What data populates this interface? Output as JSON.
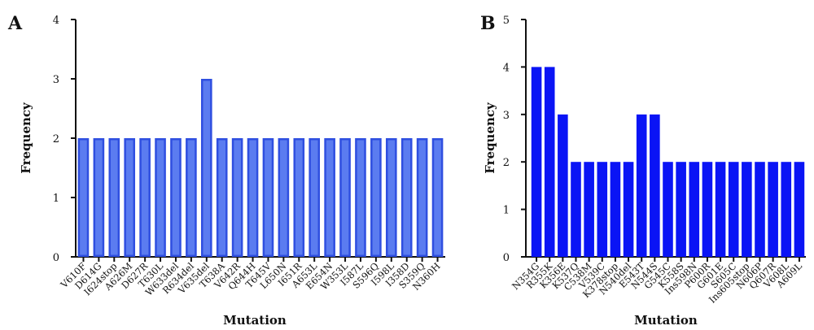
{
  "chart_data": [
    {
      "panel": "A",
      "type": "bar",
      "xlabel": "Mutation",
      "ylabel": "Frequency",
      "ylim": [
        0,
        4
      ],
      "yticks": [
        0,
        1,
        2,
        3,
        4
      ],
      "bar_color": "#5b7cf0",
      "bar_edge_color": "#2f4fe0",
      "categories": [
        "V610F",
        "D614G",
        "I624stop",
        "A626M",
        "D627R",
        "T630L",
        "W633del",
        "R634del",
        "V635del",
        "T638A",
        "V642R",
        "Q644H",
        "T645V",
        "L650N",
        "I651R",
        "A653L",
        "E654N",
        "W353L",
        "I587L",
        "S596Q",
        "I598L",
        "I358D",
        "S359Q",
        "N360H"
      ],
      "values": [
        2,
        2,
        2,
        2,
        2,
        2,
        2,
        2,
        3,
        2,
        2,
        2,
        2,
        2,
        2,
        2,
        2,
        2,
        2,
        2,
        2,
        2,
        2,
        2
      ]
    },
    {
      "panel": "B",
      "type": "bar",
      "xlabel": "Mutation",
      "ylabel": "Frequency",
      "ylim": [
        0,
        5
      ],
      "yticks": [
        0,
        1,
        2,
        3,
        4,
        5
      ],
      "bar_color": "#0a14f5",
      "bar_edge_color": "#0a14f5",
      "categories": [
        "N354G",
        "R355K",
        "K356E",
        "K537Q",
        "C538M",
        "V539C",
        "K378stop",
        "N540del",
        "E543T",
        "N544S",
        "G545C",
        "K558S",
        "Ins598N",
        "P600R",
        "G601E",
        "S605C",
        "Ins605stop",
        "N606P",
        "Q607R",
        "V608L",
        "A609L"
      ],
      "values": [
        4,
        4,
        3,
        2,
        2,
        2,
        2,
        2,
        3,
        3,
        2,
        2,
        2,
        2,
        2,
        2,
        2,
        2,
        2,
        2,
        2
      ]
    }
  ]
}
